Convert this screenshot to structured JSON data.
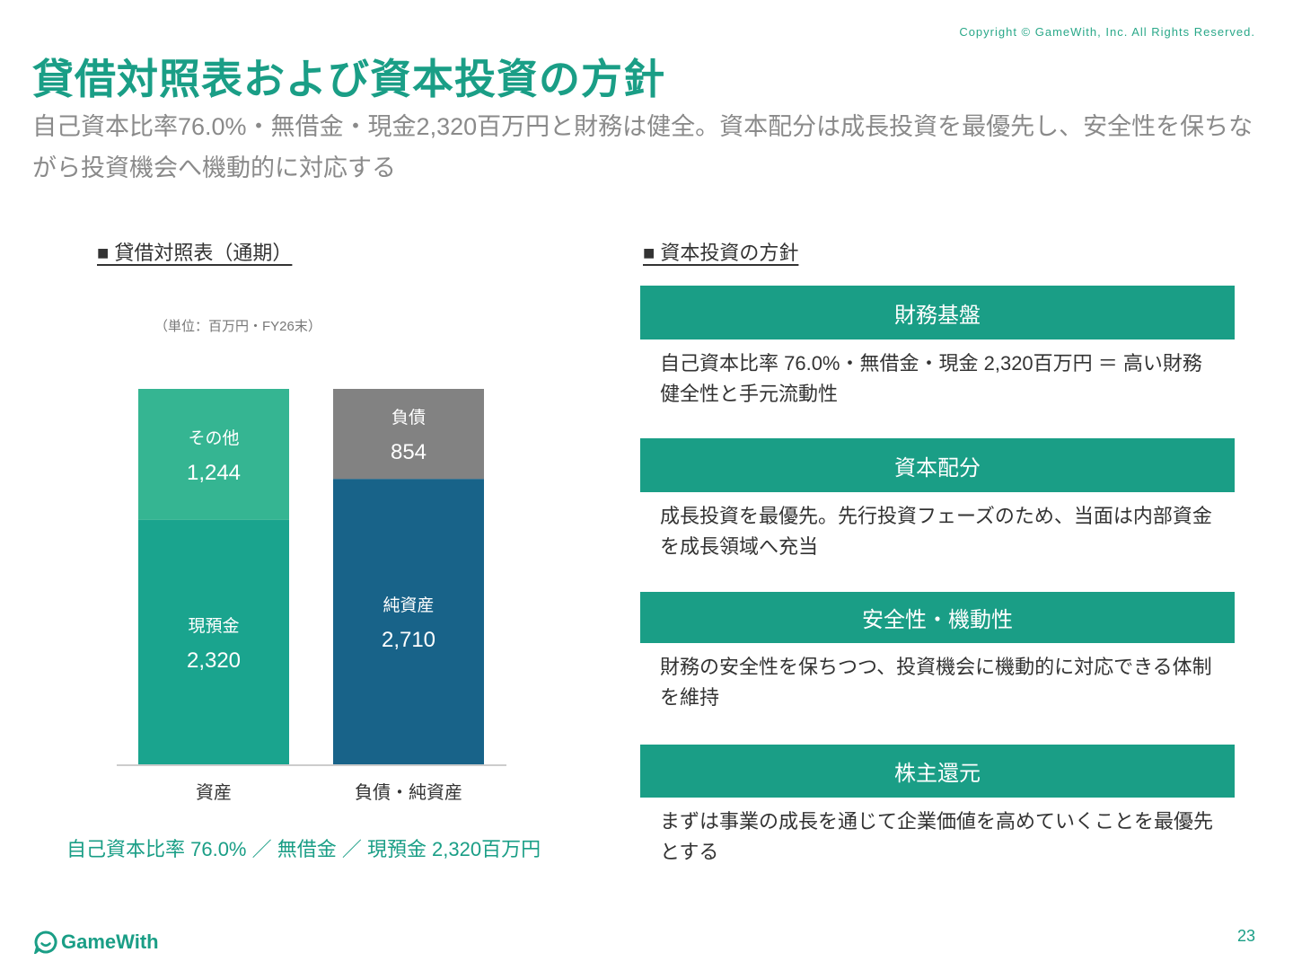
{
  "copyright": "Copyright © GameWith, Inc. All Rights Reserved.",
  "title": "貸借対照表および資本投資の方針",
  "subtitle": "自己資本比率76.0%・無借金・現金2,320百万円と財務は健全。資本配分は成長投資を最優先し、安全性を保ちながら投資機会へ機動的に対応する",
  "left_section": {
    "heading": "■ 貸借対照表（通期）",
    "unit": "（単位：百万円・FY26末）",
    "summary": "自己資本比率 76.0% ／ 無借金 ／ 現預金 2,320百万円"
  },
  "chart_data": {
    "type": "bar",
    "stacked": true,
    "categories": [
      "資産",
      "負債・純資産"
    ],
    "series": [
      {
        "category": "資産",
        "name": "現預金",
        "value": 2320,
        "label": "2,320",
        "color": "#1aa48e"
      },
      {
        "category": "資産",
        "name": "その他",
        "value": 1244,
        "label": "1,244",
        "color": "#35b592"
      },
      {
        "category": "負債・純資産",
        "name": "純資産",
        "value": 2710,
        "label": "2,710",
        "color": "#186389"
      },
      {
        "category": "負債・純資産",
        "name": "負債",
        "value": 854,
        "label": "854",
        "color": "#828282"
      }
    ],
    "ylim": [
      0,
      3564
    ],
    "grid": false
  },
  "right_section": {
    "heading": "■ 資本投資の方針",
    "items": [
      {
        "title": "財務基盤",
        "body": "自己資本比率 76.0%・無借金・現金 2,320百万円 ＝ 高い財務健全性と手元流動性"
      },
      {
        "title": "資本配分",
        "body": "成長投資を最優先。先行投資フェーズのため、当面は内部資金を成長領域へ充当"
      },
      {
        "title": "安全性・機動性",
        "body": "財務の安全性を保ちつつ、投資機会に機動的に対応できる体制を維持"
      },
      {
        "title": "株主還元",
        "body": "まずは事業の成長を通じて企業価値を高めていくことを最優先とする"
      }
    ]
  },
  "footer": {
    "logo_text": "GameWith",
    "page_number": "23"
  },
  "colors": {
    "brand": "#1a9e86",
    "axis": "#cccccc"
  }
}
